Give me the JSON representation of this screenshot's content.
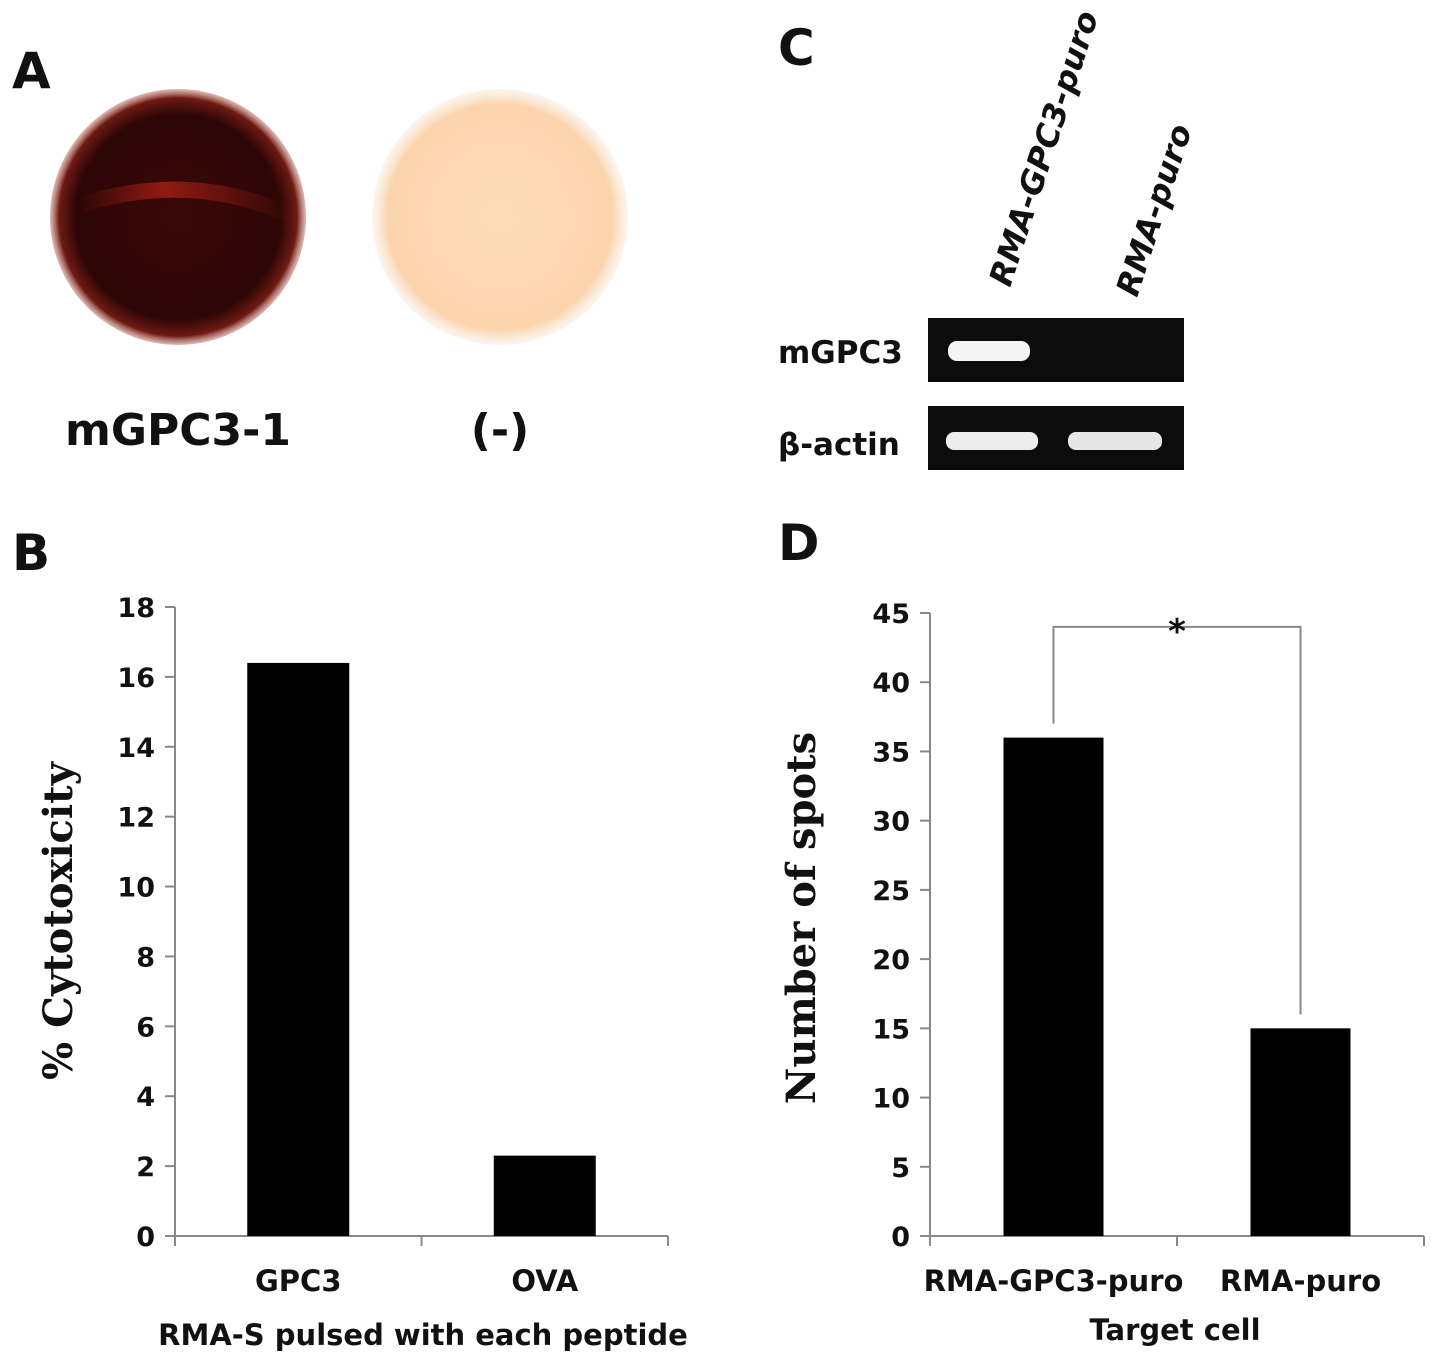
{
  "panels": {
    "A": {
      "letter": "A",
      "wells": [
        {
          "label": "mGPC3-1",
          "color": "#3a0a08"
        },
        {
          "label": "(-)",
          "color": "#fcd9b3"
        }
      ]
    },
    "C": {
      "letter": "C",
      "lanes": [
        "RMA-GPC3-puro",
        "RMA-puro"
      ],
      "rows": [
        {
          "label": "mGPC3",
          "bands": [
            true,
            false
          ]
        },
        {
          "label": "β-actin",
          "bands": [
            true,
            true
          ]
        }
      ]
    }
  },
  "chart_data": [
    {
      "panel": "B",
      "type": "bar",
      "categories": [
        "GPC3",
        "OVA"
      ],
      "values": [
        16.4,
        2.3
      ],
      "title": "",
      "xlabel": "RMA-S pulsed with each peptide",
      "ylabel": "% Cytotoxicity",
      "ylim": [
        0,
        18
      ],
      "yticks": [
        0,
        2,
        4,
        6,
        8,
        10,
        12,
        14,
        16,
        18
      ],
      "bar_color": "#000000",
      "grid": false
    },
    {
      "panel": "D",
      "type": "bar",
      "categories": [
        "RMA-GPC3-puro",
        "RMA-puro"
      ],
      "values": [
        36,
        15
      ],
      "title": "",
      "xlabel": "Target cell",
      "ylabel": "Number of spots",
      "ylim": [
        0,
        45
      ],
      "yticks": [
        0,
        5,
        10,
        15,
        20,
        25,
        30,
        35,
        40,
        45
      ],
      "significance": "*",
      "bar_color": "#000000",
      "grid": false
    }
  ]
}
